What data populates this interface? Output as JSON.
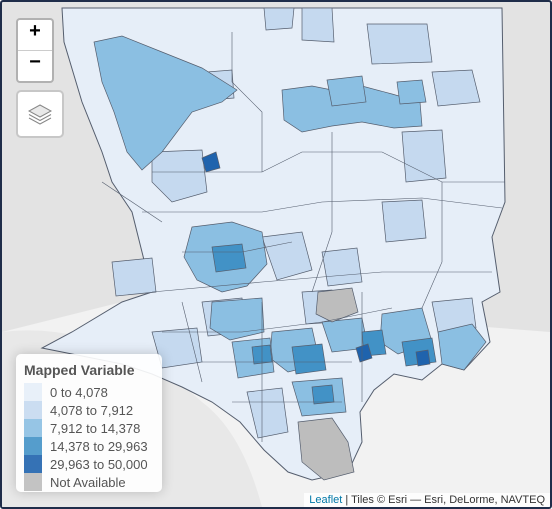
{
  "colors": {
    "background": "#e3e3e3",
    "land": "#f2f2f2",
    "border": "#555e6e",
    "na": "#bdbdbd",
    "c1": "#e6eef8",
    "c2": "#c5d9ef",
    "c3": "#8bbfe2",
    "c4": "#4292c6",
    "c5": "#1f63ad"
  },
  "zoom": {
    "in_label": "+",
    "out_label": "−"
  },
  "layers_control": {
    "icon": "layers-icon"
  },
  "legend": {
    "title": "Mapped Variable",
    "items": [
      {
        "label": "0 to 4,078",
        "color": "#e6eef8"
      },
      {
        "label": "4,078 to 7,912",
        "color": "#c5d9ef"
      },
      {
        "label": "7,912 to 14,378",
        "color": "#8bbfe2"
      },
      {
        "label": "14,378 to 29,963",
        "color": "#4292c6"
      },
      {
        "label": "29,963 to 50,000",
        "color": "#1f63ad"
      },
      {
        "label": "Not Available",
        "color": "#bdbdbd"
      }
    ]
  },
  "attribution": {
    "link_text": "Leaflet",
    "text": " | Tiles © Esri — Esri, DeLorme, NAVTEQ"
  }
}
